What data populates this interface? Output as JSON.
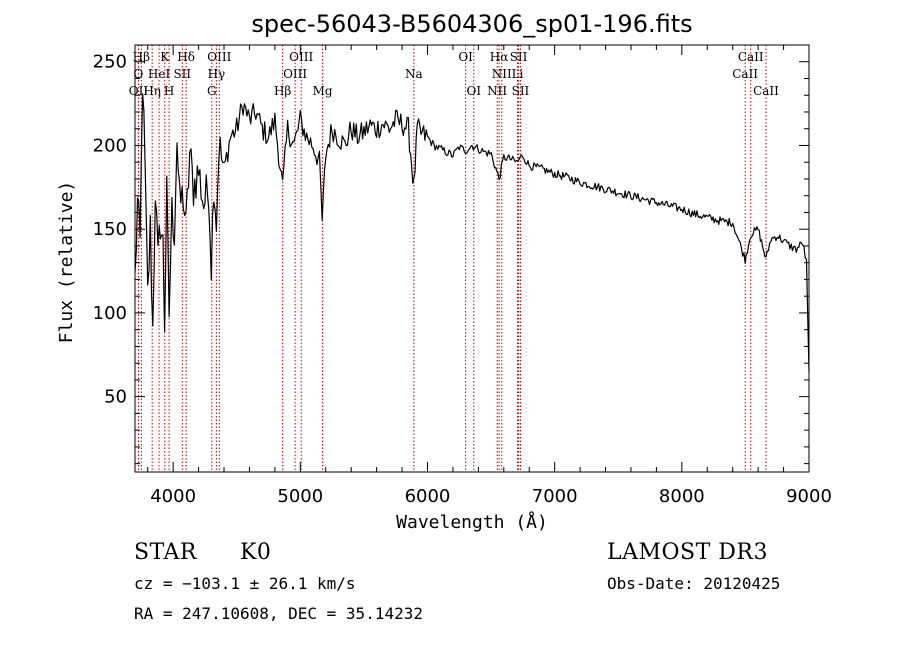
{
  "chart_data": {
    "type": "line",
    "title": "spec-56043-B5604306_sp01-196.fits",
    "xlabel": "Wavelength (Å)",
    "ylabel": "Flux (relative)",
    "xlim": [
      3700,
      9000
    ],
    "ylim": [
      5,
      260
    ],
    "xticks": [
      4000,
      5000,
      6000,
      7000,
      8000,
      9000
    ],
    "yticks": [
      50,
      100,
      150,
      200,
      250
    ],
    "series": [
      {
        "name": "spectrum",
        "x": [
          3700,
          3720,
          3740,
          3760,
          3780,
          3800,
          3820,
          3840,
          3860,
          3880,
          3900,
          3920,
          3933,
          3950,
          3968,
          3990,
          4010,
          4030,
          4050,
          4080,
          4101,
          4130,
          4160,
          4200,
          4240,
          4280,
          4300,
          4320,
          4340,
          4360,
          4400,
          4450,
          4500,
          4550,
          4600,
          4650,
          4700,
          4750,
          4800,
          4861,
          4900,
          4950,
          5000,
          5050,
          5100,
          5150,
          5172,
          5200,
          5250,
          5300,
          5350,
          5400,
          5450,
          5500,
          5550,
          5600,
          5650,
          5700,
          5750,
          5800,
          5850,
          5893,
          5920,
          5950,
          6000,
          6050,
          6100,
          6150,
          6200,
          6250,
          6300,
          6350,
          6400,
          6450,
          6500,
          6563,
          6600,
          6650,
          6700,
          6750,
          6800,
          6900,
          7000,
          7100,
          7200,
          7300,
          7400,
          7500,
          7600,
          7700,
          7800,
          7900,
          8000,
          8100,
          8200,
          8300,
          8400,
          8498,
          8542,
          8600,
          8662,
          8700,
          8750,
          8800,
          8850,
          8900,
          8950,
          8980,
          9000
        ],
        "values": [
          120,
          165,
          140,
          240,
          180,
          110,
          150,
          90,
          175,
          130,
          155,
          140,
          95,
          170,
          100,
          160,
          150,
          205,
          165,
          170,
          150,
          195,
          175,
          185,
          165,
          175,
          130,
          180,
          155,
          200,
          185,
          205,
          210,
          225,
          215,
          220,
          210,
          205,
          215,
          175,
          210,
          200,
          215,
          205,
          200,
          190,
          155,
          195,
          210,
          205,
          200,
          210,
          205,
          208,
          212,
          210,
          213,
          210,
          215,
          213,
          210,
          175,
          210,
          207,
          205,
          200,
          198,
          196,
          194,
          199,
          197,
          200,
          198,
          196,
          195,
          180,
          193,
          192,
          190,
          194,
          188,
          186,
          183,
          181,
          178,
          176,
          174,
          172,
          170,
          168,
          166,
          164,
          162,
          159,
          157,
          155,
          154,
          132,
          147,
          150,
          132,
          144,
          146,
          143,
          140,
          138,
          142,
          130,
          65
        ]
      }
    ],
    "lines": [
      {
        "name": "Hβ",
        "wave": 3750,
        "row": 0
      },
      {
        "name": "K",
        "wave": 3934,
        "row": 0
      },
      {
        "name": "Hδ",
        "wave": 4102,
        "row": 0
      },
      {
        "name": "OIII",
        "wave": 4363,
        "row": 0
      },
      {
        "name": "OIII",
        "wave": 5007,
        "row": 0
      },
      {
        "name": "OI",
        "wave": 6300,
        "row": 0
      },
      {
        "name": "Hα",
        "wave": 6563,
        "row": 0
      },
      {
        "name": "SII",
        "wave": 6716,
        "row": 0
      },
      {
        "name": "CaII",
        "wave": 8542,
        "row": 0
      },
      {
        "name": "O",
        "wave": 3727,
        "row": 1
      },
      {
        "name": "HeI",
        "wave": 3889,
        "row": 1
      },
      {
        "name": "SII",
        "wave": 4072,
        "row": 1
      },
      {
        "name": "Hγ",
        "wave": 4340,
        "row": 1
      },
      {
        "name": "OIII",
        "wave": 4959,
        "row": 1
      },
      {
        "name": "Na",
        "wave": 5893,
        "row": 1
      },
      {
        "name": "NII",
        "wave": 6584,
        "row": 1
      },
      {
        "name": "Li",
        "wave": 6708,
        "row": 1
      },
      {
        "name": "CaII",
        "wave": 8498,
        "row": 1
      },
      {
        "name": "OII",
        "wave": 3727,
        "row": 2
      },
      {
        "name": "Hη",
        "wave": 3835,
        "row": 2
      },
      {
        "name": "H",
        "wave": 3968,
        "row": 2
      },
      {
        "name": "G",
        "wave": 4304,
        "row": 2
      },
      {
        "name": "Hβ",
        "wave": 4861,
        "row": 2
      },
      {
        "name": "Mg",
        "wave": 5175,
        "row": 2
      },
      {
        "name": "OI",
        "wave": 6364,
        "row": 2
      },
      {
        "name": "NII",
        "wave": 6548,
        "row": 2
      },
      {
        "name": "SII",
        "wave": 6731,
        "row": 2
      },
      {
        "name": "CaII",
        "wave": 8662,
        "row": 2
      }
    ]
  },
  "info": {
    "object_class": "STAR",
    "subclass": "K0",
    "survey": "LAMOST DR3",
    "cz": "cz = −103.1 ± 26.1 km/s",
    "obs_date": "Obs-Date: 20120425",
    "coords": "RA = 247.10608, DEC =  35.14232"
  },
  "colors": {
    "line_marker": "#cc0000",
    "spectrum": "#000000"
  }
}
